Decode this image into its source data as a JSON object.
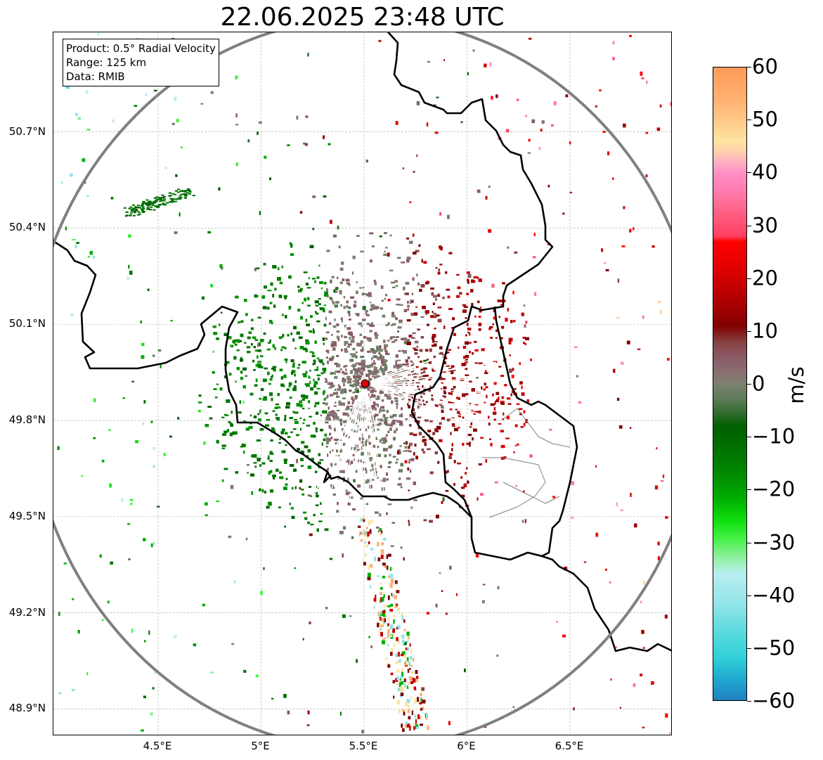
{
  "title": "22.06.2025 23:48 UTC",
  "info_box": {
    "lines": [
      "Product: 0.5° Radial Velocity",
      "Range: 125 km",
      "Data: RMIB"
    ]
  },
  "map_axes": {
    "lon_range": [
      4.0,
      7.0
    ],
    "lat_range": [
      48.8,
      51.0
    ],
    "x_ticks": [
      {
        "value": 4.5,
        "label": "4.5°E"
      },
      {
        "value": 5.0,
        "label": "5°E"
      },
      {
        "value": 5.5,
        "label": "5.5°E"
      },
      {
        "value": 6.0,
        "label": "6°E"
      },
      {
        "value": 6.5,
        "label": "6.5°E"
      }
    ],
    "y_ticks": [
      {
        "value": 50.7,
        "label": "50.7°N"
      },
      {
        "value": 50.4,
        "label": "50.4°N"
      },
      {
        "value": 50.1,
        "label": "50.1°N"
      },
      {
        "value": 49.8,
        "label": "49.8°N"
      },
      {
        "value": 49.5,
        "label": "49.5°N"
      },
      {
        "value": 49.2,
        "label": "49.2°N"
      },
      {
        "value": 48.9,
        "label": "48.9°N"
      }
    ],
    "gridlines": true
  },
  "radar": {
    "site_lon": 5.505,
    "site_lat": 49.915,
    "range_km": 125,
    "site_color": "#e00000",
    "range_ring_color": "#808080"
  },
  "colorbar": {
    "unit": "m/s",
    "vmin": -60,
    "vmax": 60,
    "ticks": [
      60,
      50,
      40,
      30,
      20,
      10,
      0,
      -10,
      -20,
      -30,
      -40,
      -50,
      -60
    ],
    "tick_labels": [
      "60",
      "50",
      "40",
      "30",
      "20",
      "10",
      "0",
      "−10",
      "−20",
      "−30",
      "−40",
      "−50",
      "−60"
    ],
    "stops": [
      {
        "v": 60,
        "c": "#ff9c5a"
      },
      {
        "v": 54,
        "c": "#ffb070"
      },
      {
        "v": 50,
        "c": "#ffc888"
      },
      {
        "v": 46,
        "c": "#ffe4a0"
      },
      {
        "v": 44,
        "c": "#ffd0b0"
      },
      {
        "v": 42,
        "c": "#ffb0c0"
      },
      {
        "v": 40,
        "c": "#ff90c8"
      },
      {
        "v": 36,
        "c": "#ff78a8"
      },
      {
        "v": 32,
        "c": "#ff5c80"
      },
      {
        "v": 28,
        "c": "#ff4060"
      },
      {
        "v": 27,
        "c": "#ff0000"
      },
      {
        "v": 22,
        "c": "#e00000"
      },
      {
        "v": 18,
        "c": "#c00000"
      },
      {
        "v": 14,
        "c": "#a00000"
      },
      {
        "v": 11,
        "c": "#800000"
      },
      {
        "v": 8,
        "c": "#884040"
      },
      {
        "v": 5,
        "c": "#8a5a66"
      },
      {
        "v": 2,
        "c": "#8a7072"
      },
      {
        "v": 0,
        "c": "#7c8070"
      },
      {
        "v": -3,
        "c": "#5c7a56"
      },
      {
        "v": -6,
        "c": "#2a6a28"
      },
      {
        "v": -8,
        "c": "#006000"
      },
      {
        "v": -14,
        "c": "#007800"
      },
      {
        "v": -18,
        "c": "#009000"
      },
      {
        "v": -22,
        "c": "#00b000"
      },
      {
        "v": -26,
        "c": "#10e010"
      },
      {
        "v": -29,
        "c": "#40f040"
      },
      {
        "v": -33,
        "c": "#90f0a0"
      },
      {
        "v": -36,
        "c": "#b8eef0"
      },
      {
        "v": -42,
        "c": "#90e4e8"
      },
      {
        "v": -48,
        "c": "#50d8dc"
      },
      {
        "v": -52,
        "c": "#30d0d8"
      },
      {
        "v": -56,
        "c": "#20a8d0"
      },
      {
        "v": -60,
        "c": "#2080c0"
      }
    ]
  }
}
